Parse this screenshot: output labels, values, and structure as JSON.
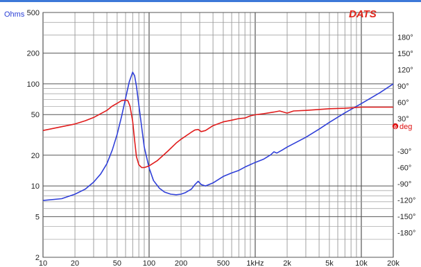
{
  "chart_data": {
    "type": "line",
    "brand": "DATS",
    "ylabel": "Ohms",
    "y2label": "deg",
    "x_scale": "log",
    "y_scale": "log",
    "xlim": [
      10,
      20000
    ],
    "ylim": [
      2,
      500
    ],
    "y2lim": [
      -225,
      225
    ],
    "grid": true,
    "x_ticks": [
      {
        "v": 10,
        "label": "10"
      },
      {
        "v": 20,
        "label": "20"
      },
      {
        "v": 50,
        "label": "50"
      },
      {
        "v": 100,
        "label": "100"
      },
      {
        "v": 200,
        "label": "200"
      },
      {
        "v": 500,
        "label": "500"
      },
      {
        "v": 1000,
        "label": "1kHz"
      },
      {
        "v": 2000,
        "label": "2k"
      },
      {
        "v": 5000,
        "label": "5k"
      },
      {
        "v": 10000,
        "label": "10k"
      },
      {
        "v": 20000,
        "label": "20k"
      }
    ],
    "y_ticks": [
      {
        "v": 2,
        "label": "2"
      },
      {
        "v": 5,
        "label": "5"
      },
      {
        "v": 10,
        "label": "10"
      },
      {
        "v": 20,
        "label": "20"
      },
      {
        "v": 50,
        "label": "50"
      },
      {
        "v": 100,
        "label": "100"
      },
      {
        "v": 200,
        "label": "200"
      },
      {
        "v": 500,
        "label": "500"
      }
    ],
    "y2_ticks": [
      {
        "v": 180,
        "label": "180°"
      },
      {
        "v": 150,
        "label": "150°"
      },
      {
        "v": 120,
        "label": "120°"
      },
      {
        "v": 90,
        "label": "90°"
      },
      {
        "v": 60,
        "label": "60°"
      },
      {
        "v": 30,
        "label": "30°"
      },
      {
        "v": -30,
        "label": "-30°"
      },
      {
        "v": -60,
        "label": "-60°"
      },
      {
        "v": -90,
        "label": "-90°"
      },
      {
        "v": -120,
        "label": "-120°"
      },
      {
        "v": -150,
        "label": "-150°"
      },
      {
        "v": -180,
        "label": "-180°"
      }
    ],
    "y2_zero_label": "0",
    "series": [
      {
        "key": "impedance",
        "axis": "left",
        "color": "#2f3fd8",
        "points": [
          [
            10,
            7.2
          ],
          [
            15,
            7.5
          ],
          [
            20,
            8.3
          ],
          [
            25,
            9.3
          ],
          [
            30,
            10.9
          ],
          [
            35,
            13.1
          ],
          [
            40,
            16.5
          ],
          [
            45,
            22.5
          ],
          [
            50,
            32
          ],
          [
            55,
            48
          ],
          [
            60,
            72
          ],
          [
            65,
            105
          ],
          [
            70,
            130
          ],
          [
            73,
            120
          ],
          [
            76,
            95
          ],
          [
            80,
            62
          ],
          [
            85,
            38
          ],
          [
            90,
            24
          ],
          [
            100,
            15
          ],
          [
            110,
            11.3
          ],
          [
            125,
            9.5
          ],
          [
            140,
            8.7
          ],
          [
            160,
            8.3
          ],
          [
            180,
            8.2
          ],
          [
            200,
            8.3
          ],
          [
            220,
            8.6
          ],
          [
            250,
            9.3
          ],
          [
            270,
            10.3
          ],
          [
            290,
            11.1
          ],
          [
            310,
            10.3
          ],
          [
            340,
            10.0
          ],
          [
            400,
            10.7
          ],
          [
            500,
            12.4
          ],
          [
            600,
            13.4
          ],
          [
            700,
            14.2
          ],
          [
            800,
            15.3
          ],
          [
            1000,
            17.0
          ],
          [
            1200,
            18.3
          ],
          [
            1400,
            20.2
          ],
          [
            1500,
            21.6
          ],
          [
            1600,
            21.0
          ],
          [
            1800,
            22.5
          ],
          [
            2000,
            24.0
          ],
          [
            3000,
            30
          ],
          [
            4000,
            36
          ],
          [
            5000,
            42
          ],
          [
            7000,
            52
          ],
          [
            10000,
            64
          ],
          [
            15000,
            82
          ],
          [
            20000,
            100
          ]
        ]
      },
      {
        "key": "phase",
        "axis": "right",
        "color": "#e01b1b",
        "points": [
          [
            10,
            8
          ],
          [
            15,
            15
          ],
          [
            20,
            20
          ],
          [
            25,
            26
          ],
          [
            30,
            32
          ],
          [
            35,
            39
          ],
          [
            40,
            45
          ],
          [
            45,
            53
          ],
          [
            50,
            58
          ],
          [
            55,
            63
          ],
          [
            60,
            64
          ],
          [
            63,
            63
          ],
          [
            66,
            53
          ],
          [
            70,
            25
          ],
          [
            73,
            -10
          ],
          [
            76,
            -40
          ],
          [
            80,
            -55
          ],
          [
            85,
            -60
          ],
          [
            90,
            -60
          ],
          [
            100,
            -57
          ],
          [
            120,
            -47
          ],
          [
            150,
            -30
          ],
          [
            180,
            -15
          ],
          [
            200,
            -8
          ],
          [
            250,
            5
          ],
          [
            270,
            9
          ],
          [
            290,
            10
          ],
          [
            310,
            6
          ],
          [
            340,
            8
          ],
          [
            400,
            17
          ],
          [
            500,
            24
          ],
          [
            600,
            27
          ],
          [
            700,
            30
          ],
          [
            800,
            31
          ],
          [
            900,
            35
          ],
          [
            1000,
            37
          ],
          [
            1200,
            39
          ],
          [
            1500,
            42
          ],
          [
            1700,
            44
          ],
          [
            2000,
            40
          ],
          [
            2300,
            44
          ],
          [
            3000,
            45
          ],
          [
            5000,
            48
          ],
          [
            7000,
            49
          ],
          [
            10000,
            51
          ],
          [
            15000,
            51
          ],
          [
            20000,
            51
          ]
        ]
      }
    ]
  }
}
